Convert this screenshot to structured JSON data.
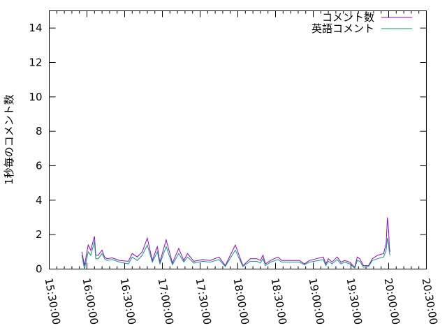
{
  "chart_data": {
    "type": "line",
    "title": "",
    "xlabel": "",
    "ylabel": "1秒毎のコメント数",
    "xlim": [
      "15:30:00",
      "20:30:00"
    ],
    "ylim": [
      0,
      15
    ],
    "xticks": [
      "15:30:00",
      "16:00:00",
      "16:30:00",
      "17:00:00",
      "17:30:00",
      "18:00:00",
      "18:30:00",
      "19:00:00",
      "19:30:00",
      "20:00:00",
      "20:30:00"
    ],
    "yticks": [
      "0",
      "2",
      "4",
      "6",
      "8",
      "10",
      "12",
      "14"
    ],
    "grid": false,
    "legend_position": "top-right",
    "x": [
      "15:56:00",
      "15:58:00",
      "16:01:00",
      "16:03:00",
      "16:06:00",
      "16:07:00",
      "16:09:00",
      "16:12:00",
      "16:14:00",
      "16:16:00",
      "16:20:00",
      "16:26:00",
      "16:33:00",
      "16:36:00",
      "16:40:00",
      "16:44:00",
      "16:48:00",
      "16:52:00",
      "16:56:00",
      "16:58:00",
      "17:03:00",
      "17:08:00",
      "17:13:00",
      "17:17:00",
      "17:20:00",
      "17:25:00",
      "17:32:00",
      "17:38:00",
      "17:45:00",
      "17:50:00",
      "17:58:00",
      "18:04:00",
      "18:10:00",
      "18:15:00",
      "18:18:00",
      "18:20:00",
      "18:22:00",
      "18:26:00",
      "18:32:00",
      "18:35:00",
      "18:44:00",
      "18:49:00",
      "18:53:00",
      "18:57:00",
      "19:08:00",
      "19:10:00",
      "19:12:00",
      "19:15:00",
      "19:19:00",
      "19:22:00",
      "19:25:00",
      "19:29:00",
      "19:33:00",
      "19:35:00",
      "19:37:00",
      "19:40:00",
      "19:44:00",
      "19:47:00",
      "19:51:00",
      "19:56:00",
      "19:58:00",
      "19:59:00",
      "20:00:00",
      "20:00:30",
      "20:01:00"
    ],
    "series": [
      {
        "name": "コメント数",
        "color": "#9400d3",
        "values": [
          1.0,
          0.2,
          1.4,
          1.1,
          1.9,
          0.8,
          0.8,
          1.1,
          0.7,
          0.6,
          0.65,
          0.5,
          0.45,
          0.9,
          0.7,
          1.0,
          1.8,
          0.5,
          1.3,
          0.4,
          1.7,
          0.35,
          1.2,
          0.5,
          0.9,
          0.45,
          0.55,
          0.5,
          0.7,
          0.2,
          1.4,
          0.2,
          0.6,
          0.6,
          0.5,
          0.8,
          0.3,
          0.5,
          0.7,
          0.5,
          0.5,
          0.5,
          0.3,
          0.5,
          0.7,
          0.3,
          0.6,
          0.4,
          0.7,
          0.4,
          0.5,
          0.4,
          0.1,
          0.7,
          0.6,
          0.2,
          0.2,
          0.6,
          0.8,
          0.9,
          1.5,
          3.0,
          2.2,
          1.3,
          1.0
        ]
      },
      {
        "name": "英語コメント",
        "color": "#009e73",
        "values": [
          0.8,
          0.0,
          1.0,
          0.8,
          1.6,
          0.6,
          0.6,
          0.9,
          0.6,
          0.5,
          0.55,
          0.4,
          0.3,
          0.7,
          0.5,
          0.8,
          1.4,
          0.4,
          1.0,
          0.3,
          1.3,
          0.25,
          0.9,
          0.4,
          0.7,
          0.35,
          0.45,
          0.4,
          0.55,
          0.15,
          1.1,
          0.15,
          0.45,
          0.45,
          0.35,
          0.6,
          0.2,
          0.4,
          0.55,
          0.4,
          0.4,
          0.4,
          0.25,
          0.4,
          0.55,
          0.2,
          0.45,
          0.3,
          0.55,
          0.3,
          0.4,
          0.3,
          0.05,
          0.5,
          0.45,
          0.1,
          0.15,
          0.5,
          0.6,
          0.7,
          1.1,
          1.8,
          1.4,
          1.0,
          0.8
        ]
      }
    ]
  }
}
